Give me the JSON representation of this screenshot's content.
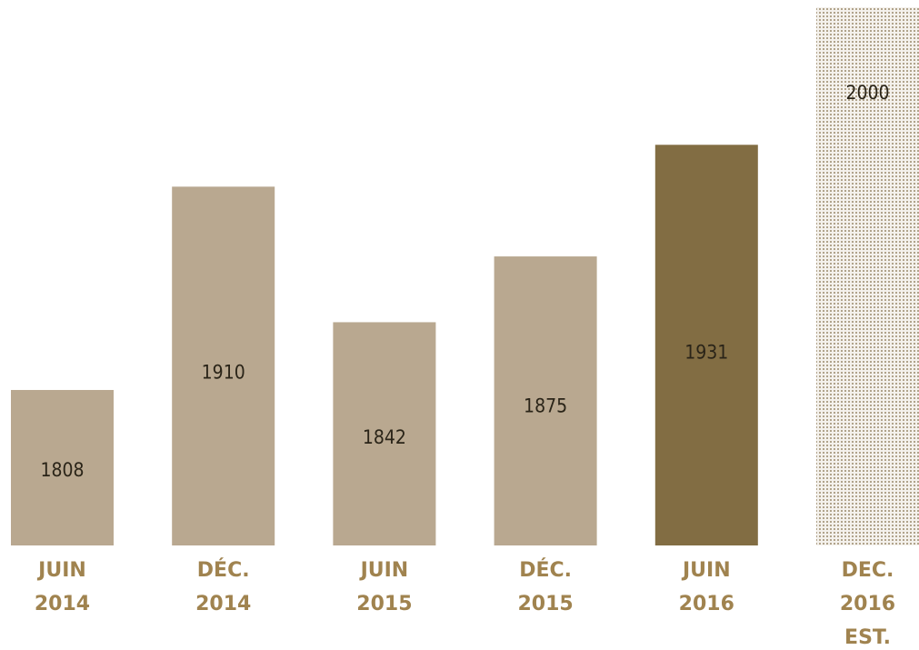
{
  "chart_data": {
    "type": "bar",
    "categories": [
      [
        "JUIN",
        "2014"
      ],
      [
        "DÉC.",
        "2014"
      ],
      [
        "JUIN",
        "2015"
      ],
      [
        "DÉC.",
        "2015"
      ],
      [
        "JUIN",
        "2016"
      ],
      [
        "DEC.",
        "2016",
        "EST."
      ]
    ],
    "values": [
      1808,
      1910,
      1842,
      1875,
      1931,
      2000
    ],
    "colors": [
      "#b9a890",
      "#b9a890",
      "#b9a890",
      "#b9a890",
      "#826d43",
      "#a89a80"
    ],
    "styles": [
      "solid",
      "solid",
      "solid",
      "solid",
      "solid",
      "dotted"
    ],
    "ylim": [
      1730,
      2000
    ]
  }
}
